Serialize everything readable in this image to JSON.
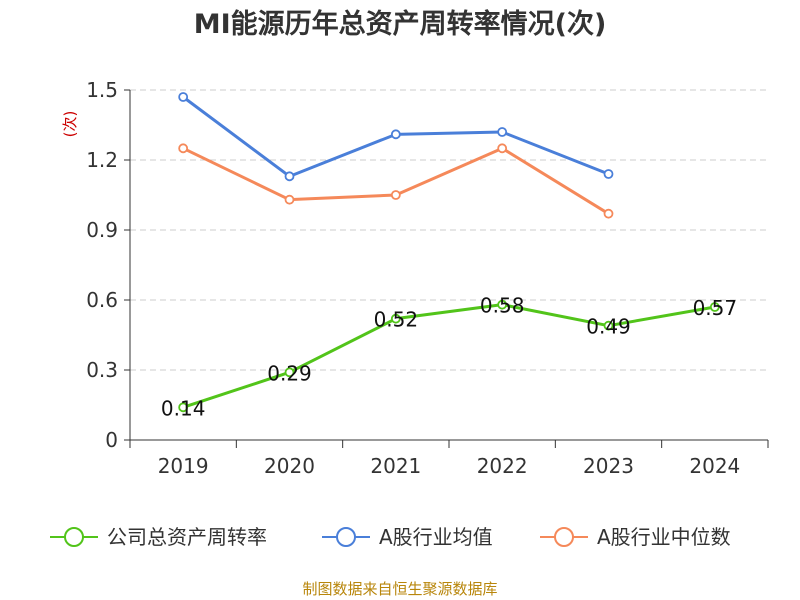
{
  "title": "MI能源历年总资产周转率情况(次)",
  "source": "制图数据来自恒生聚源数据库",
  "chart_data": {
    "type": "line",
    "title": "MI能源历年总资产周转率情况(次)",
    "ylabel": "(次)",
    "categories": [
      "2019",
      "2020",
      "2021",
      "2022",
      "2023",
      "2024"
    ],
    "ylim": [
      0,
      1.5
    ],
    "yticks": [
      "0",
      "0.3",
      "0.6",
      "0.9",
      "1.2",
      "1.5"
    ],
    "grid": true,
    "legend": "bottom",
    "series": [
      {
        "name": "公司总资产周转率",
        "color": "#52c41a",
        "values": [
          0.14,
          0.29,
          0.52,
          0.58,
          0.49,
          0.57
        ],
        "labels": [
          "0.14",
          "0.29",
          "0.52",
          "0.58",
          "0.49",
          "0.57"
        ],
        "show_labels": true
      },
      {
        "name": "A股行业均值",
        "color": "#4a7fd9",
        "values": [
          1.47,
          1.13,
          1.31,
          1.32,
          1.14,
          null
        ],
        "show_labels": false
      },
      {
        "name": "A股行业中位数",
        "color": "#f5895a",
        "values": [
          1.25,
          1.03,
          1.05,
          1.25,
          0.97,
          null
        ],
        "show_labels": false
      }
    ]
  }
}
